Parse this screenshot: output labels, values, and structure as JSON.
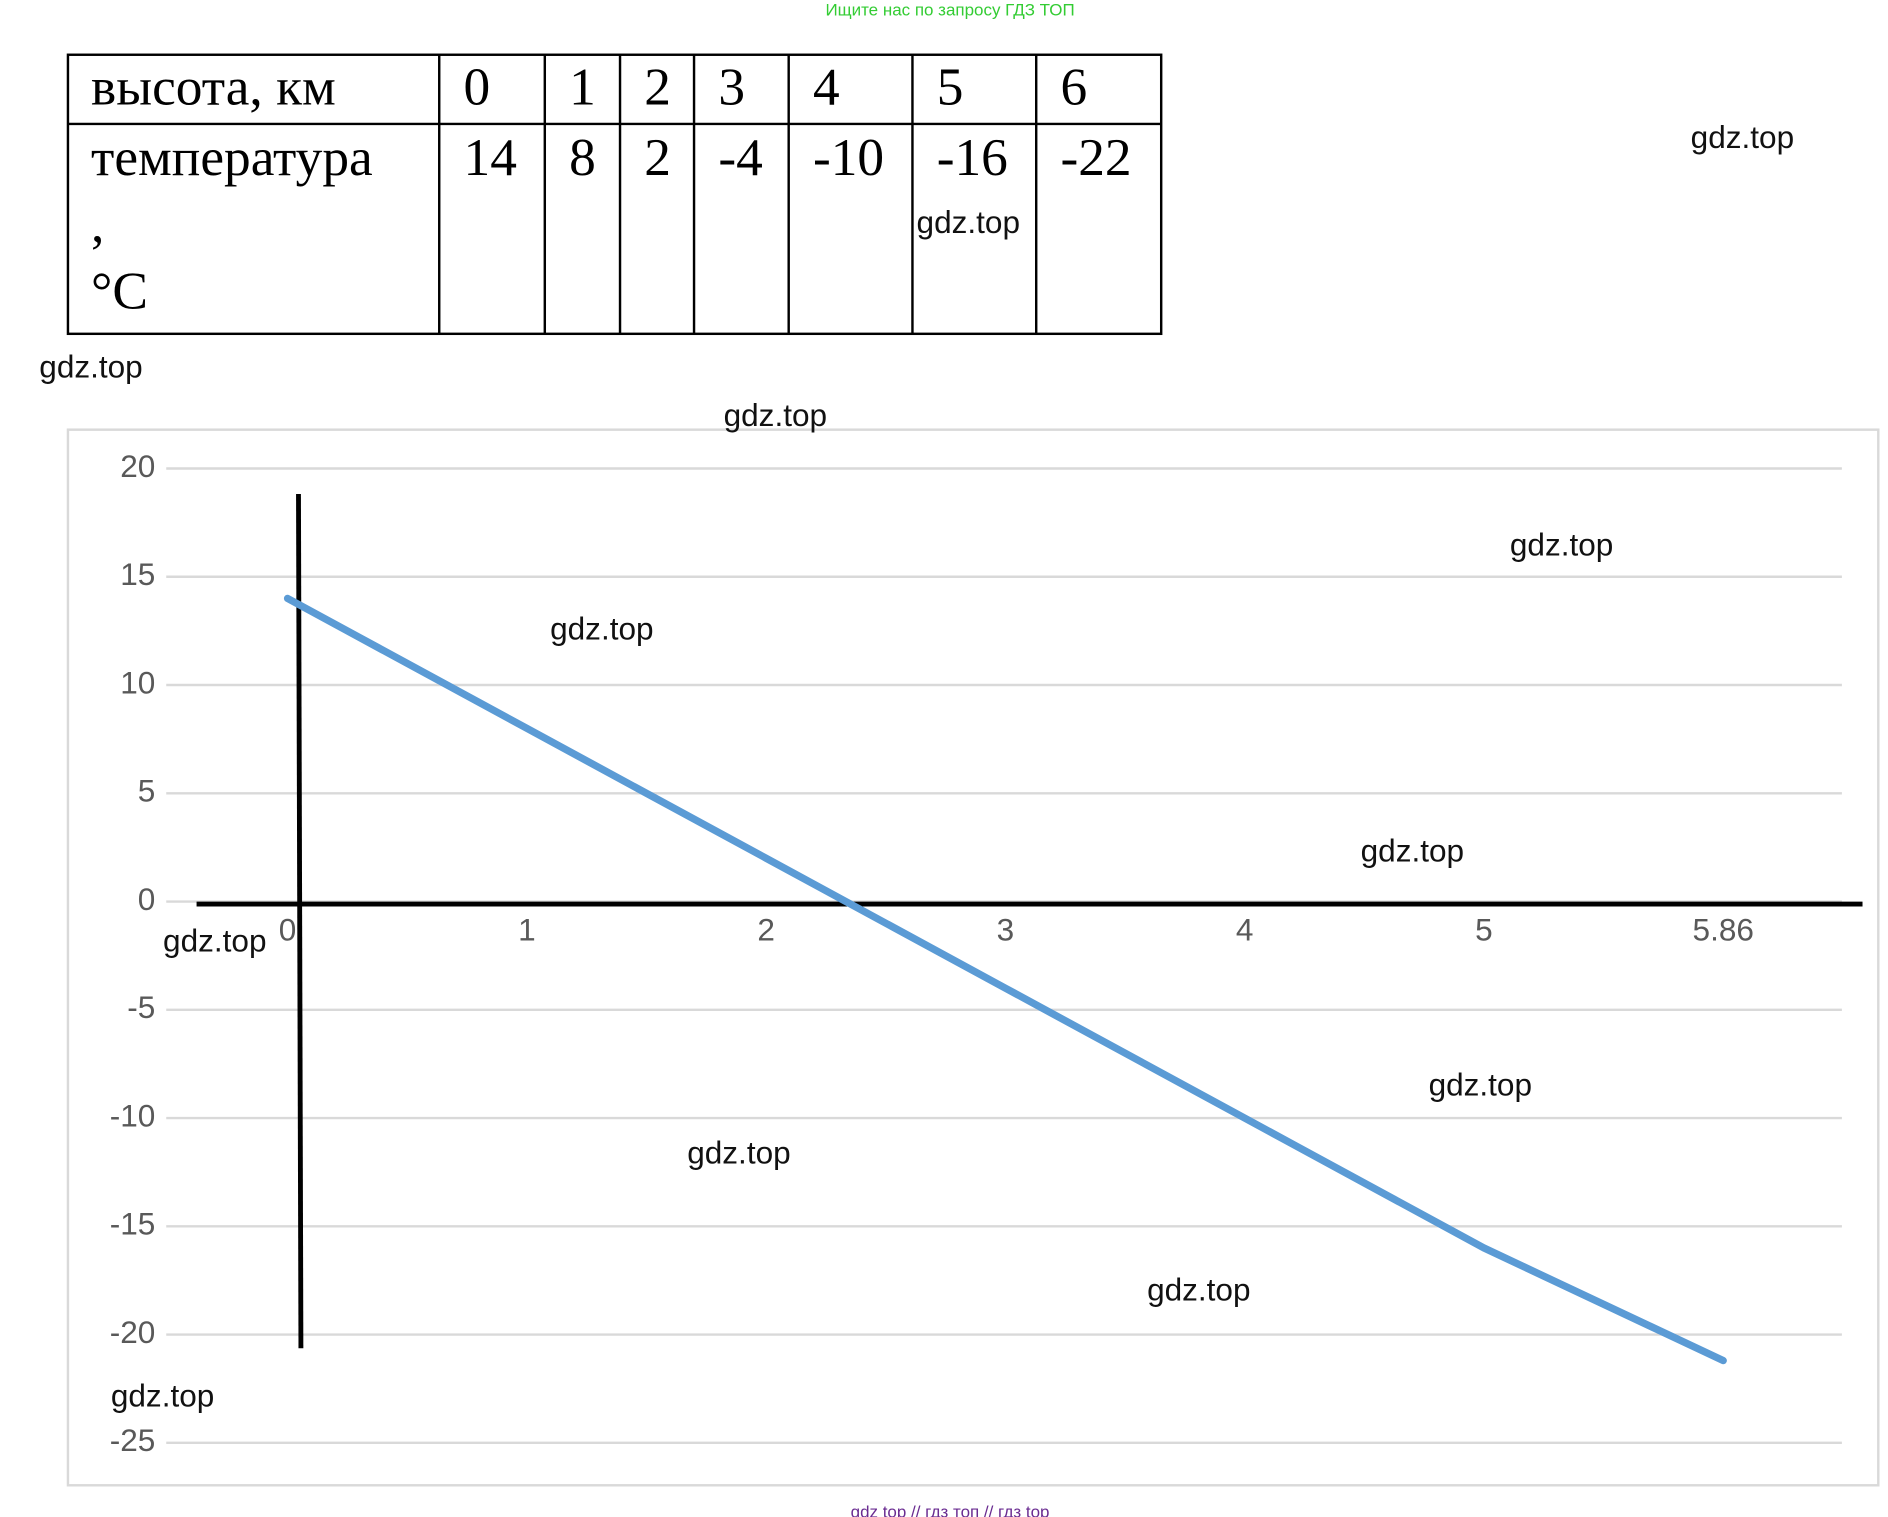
{
  "header": {
    "title": "Ищите нас по запросу ГДЗ ТОП"
  },
  "table": {
    "rows": [
      [
        "высота, км",
        "0",
        "1",
        "2",
        "3",
        "4",
        "5",
        "6"
      ],
      [
        [
          "температура",
          ",",
          "°C"
        ],
        "14",
        "8",
        "2",
        "-4",
        "-10",
        "-16",
        "-22"
      ]
    ]
  },
  "chart_data": {
    "type": "line",
    "categories": [
      "0",
      "1",
      "2",
      "3",
      "4",
      "5",
      "5.86"
    ],
    "series": [
      {
        "color": "#5b9bd5",
        "values": [
          14,
          8,
          2,
          -4,
          -10,
          -16,
          -21.2
        ]
      }
    ],
    "ylim": [
      -25,
      20
    ],
    "yticks": [
      -25,
      -20,
      -15,
      -10,
      -5,
      0,
      5,
      10,
      15,
      20
    ],
    "grid": true
  },
  "watermarks": [
    "gdz.top",
    "gdz.top",
    "gdz.top",
    "gdz.top",
    "gdz.top",
    "gdz.top",
    "gdz.top",
    "gdz.top",
    "gdz.top",
    "gdz.top",
    "gdz.top",
    "gdz.top"
  ],
  "footer": {
    "text": "gdz top  //  гдз топ  //  гдз top"
  }
}
